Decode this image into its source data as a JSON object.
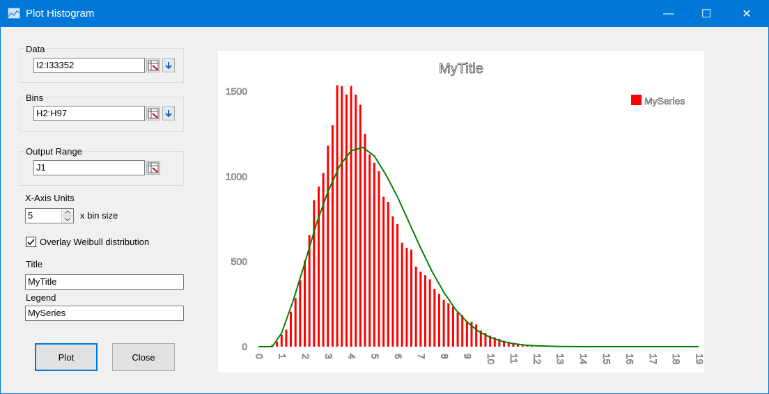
{
  "window": {
    "title": "Plot Histogram",
    "minimize": "—",
    "maximize": "☐",
    "close": "✕"
  },
  "form": {
    "data_label": "Data",
    "data_value": "I2:I33352",
    "bins_label": "Bins",
    "bins_value": "H2:H97",
    "output_label": "Output Range",
    "output_value": "J1",
    "xaxis_label": "X-Axis Units",
    "xaxis_value": "5",
    "xaxis_suffix": "x bin size",
    "overlay_label": "Overlay Weibull distribution",
    "overlay_checked": true,
    "title_label": "Title",
    "title_value": "MyTitle",
    "legend_label": "Legend",
    "legend_value": "MySeries",
    "plot_button": "Plot",
    "close_button": "Close"
  },
  "colors": {
    "bar": "#ff0000",
    "curve": "#008000",
    "accent": "#0078d7"
  },
  "chart_data": {
    "type": "bar",
    "title": "MyTitle",
    "legend_position": "top-right",
    "xlabel": "",
    "ylabel": "",
    "xlim": [
      0,
      19
    ],
    "ylim": [
      0,
      1500
    ],
    "yticks": [
      "0",
      "500",
      "1000",
      "1500"
    ],
    "xticks": [
      "0",
      "1",
      "2",
      "3",
      "4",
      "5",
      "6",
      "7",
      "8",
      "9",
      "10",
      "11",
      "12",
      "13",
      "14",
      "15",
      "16",
      "17",
      "18",
      "19"
    ],
    "grid": false,
    "series": [
      {
        "name": "MySeries",
        "type": "bar",
        "x": [
          0.6,
          0.8,
          1.0,
          1.2,
          1.4,
          1.6,
          1.8,
          2.0,
          2.2,
          2.4,
          2.6,
          2.8,
          3.0,
          3.2,
          3.4,
          3.6,
          3.8,
          4.0,
          4.2,
          4.4,
          4.6,
          4.8,
          5.0,
          5.2,
          5.4,
          5.6,
          5.8,
          6.0,
          6.2,
          6.4,
          6.6,
          6.8,
          7.0,
          7.2,
          7.4,
          7.6,
          7.8,
          8.0,
          8.2,
          8.4,
          8.6,
          8.8,
          9.0,
          9.2,
          9.4,
          9.6,
          9.8,
          10.0,
          10.2,
          10.4,
          10.6,
          10.8,
          11.0,
          11.2,
          11.4,
          11.6,
          11.8,
          12.0,
          12.2,
          12.4,
          12.6,
          12.8,
          13.0,
          13.2,
          13.4,
          13.6
        ],
        "values": [
          10,
          30,
          70,
          100,
          205,
          285,
          390,
          505,
          655,
          860,
          940,
          1020,
          1180,
          1300,
          1535,
          1530,
          1480,
          1530,
          1480,
          1420,
          1250,
          1130,
          1080,
          1030,
          880,
          850,
          765,
          720,
          610,
          580,
          570,
          470,
          440,
          420,
          395,
          340,
          310,
          275,
          255,
          235,
          200,
          185,
          150,
          145,
          130,
          95,
          80,
          65,
          55,
          45,
          35,
          28,
          22,
          18,
          14,
          12,
          10,
          8,
          7,
          6,
          5,
          4,
          4,
          3,
          3,
          2
        ]
      },
      {
        "name": "",
        "type": "line",
        "x": [
          0,
          0.6,
          1,
          1.5,
          2,
          2.5,
          3,
          3.5,
          4,
          4.5,
          5,
          5.5,
          6,
          6.5,
          7,
          7.5,
          8,
          8.5,
          9,
          9.5,
          10,
          10.5,
          11,
          11.5,
          12,
          13,
          14,
          15,
          16,
          17,
          18,
          19
        ],
        "values": [
          0,
          0,
          80,
          270,
          490,
          720,
          910,
          1060,
          1150,
          1170,
          1120,
          1010,
          880,
          730,
          580,
          440,
          320,
          220,
          145,
          90,
          55,
          32,
          18,
          9,
          5,
          1,
          0,
          0,
          0,
          0,
          0,
          0
        ]
      }
    ]
  }
}
